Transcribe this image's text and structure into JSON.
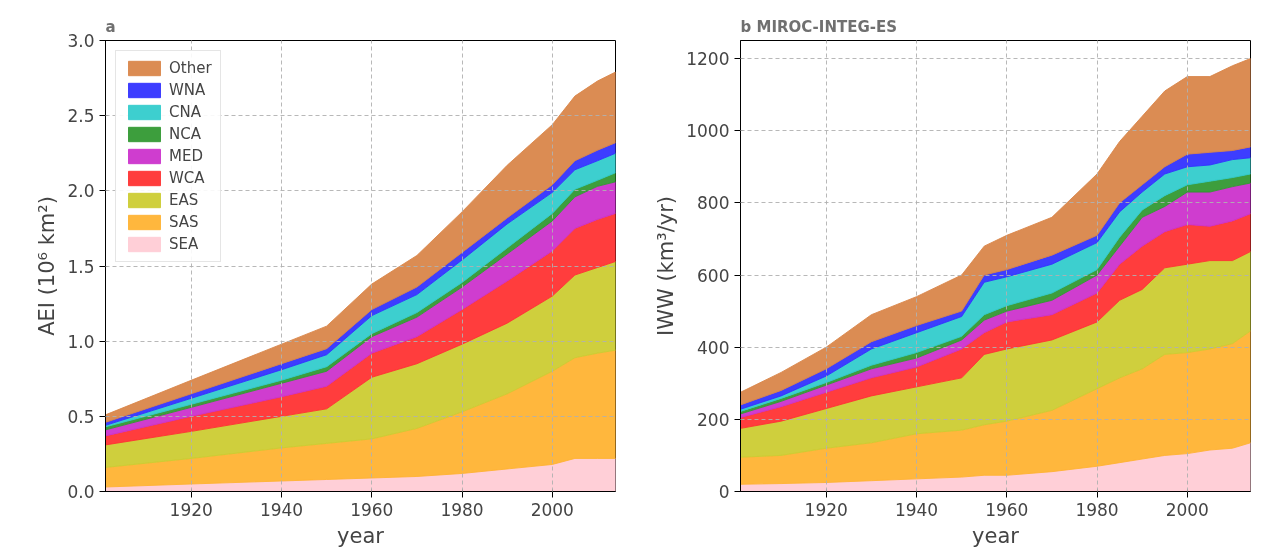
{
  "chart_data": [
    {
      "type": "area",
      "stacked": true,
      "title": "a",
      "xlabel": "year",
      "ylabel": "AEI (10⁶ km²)",
      "x": [
        1901,
        1920,
        1940,
        1950,
        1960,
        1970,
        1980,
        1990,
        2000,
        2005,
        2010,
        2014
      ],
      "xlim": [
        1901,
        2014
      ],
      "xticks": [
        1920,
        1940,
        1960,
        1980,
        2000
      ],
      "ylim": [
        0,
        3
      ],
      "yticks": [
        {
          "value": 0,
          "label": "0.0"
        },
        0.5,
        {
          "value": 1,
          "label": "1.0"
        },
        1.5,
        {
          "value": 2,
          "label": "2.0"
        },
        2.5,
        {
          "value": 3,
          "label": "3.0"
        }
      ],
      "grid": true,
      "legend": "top left",
      "series": [
        {
          "name": "SEA",
          "color": "#ffccd5",
          "values": [
            0.03,
            0.05,
            0.07,
            0.08,
            0.09,
            0.1,
            0.12,
            0.15,
            0.18,
            0.22,
            0.22,
            0.22
          ]
        },
        {
          "name": "SAS",
          "color": "#ffb333",
          "values": [
            0.13,
            0.17,
            0.22,
            0.24,
            0.26,
            0.32,
            0.41,
            0.5,
            0.62,
            0.67,
            0.7,
            0.72
          ]
        },
        {
          "name": "EAS",
          "color": "#cccc33",
          "values": [
            0.15,
            0.18,
            0.21,
            0.23,
            0.41,
            0.43,
            0.45,
            0.47,
            0.5,
            0.55,
            0.57,
            0.59
          ]
        },
        {
          "name": "WCA",
          "color": "#ff3333",
          "values": [
            0.06,
            0.1,
            0.13,
            0.15,
            0.16,
            0.18,
            0.23,
            0.28,
            0.3,
            0.31,
            0.32,
            0.32
          ]
        },
        {
          "name": "MED",
          "color": "#cc33cc",
          "values": [
            0.04,
            0.06,
            0.09,
            0.1,
            0.11,
            0.13,
            0.15,
            0.18,
            0.2,
            0.21,
            0.22,
            0.21
          ]
        },
        {
          "name": "NCA",
          "color": "#339933",
          "values": [
            0.02,
            0.02,
            0.02,
            0.03,
            0.02,
            0.03,
            0.03,
            0.04,
            0.05,
            0.05,
            0.04,
            0.06
          ]
        },
        {
          "name": "CNA",
          "color": "#33cccc",
          "values": [
            0.01,
            0.04,
            0.07,
            0.08,
            0.12,
            0.12,
            0.15,
            0.16,
            0.14,
            0.13,
            0.13,
            0.13
          ]
        },
        {
          "name": "WNA",
          "color": "#3333ff",
          "values": [
            0.02,
            0.03,
            0.04,
            0.04,
            0.04,
            0.05,
            0.05,
            0.04,
            0.05,
            0.06,
            0.07,
            0.07
          ]
        },
        {
          "name": "Other",
          "color": "#d9864a",
          "values": [
            0.05,
            0.09,
            0.13,
            0.15,
            0.17,
            0.21,
            0.27,
            0.35,
            0.4,
            0.43,
            0.46,
            0.47
          ]
        }
      ]
    },
    {
      "type": "area",
      "stacked": true,
      "title": "b MIROC-INTEG-ES",
      "xlabel": "year",
      "ylabel": "IWW (km³/yr)",
      "x": [
        1901,
        1910,
        1920,
        1930,
        1940,
        1950,
        1955,
        1960,
        1970,
        1980,
        1985,
        1990,
        1995,
        2000,
        2005,
        2010,
        2014
      ],
      "xlim": [
        1901,
        2014
      ],
      "xticks": [
        1920,
        1940,
        1960,
        1980,
        2000
      ],
      "ylim": [
        0,
        1250
      ],
      "yticks": [
        0,
        200,
        400,
        600,
        800,
        1000,
        1200
      ],
      "grid": true,
      "series": [
        {
          "color": "#ffccd5",
          "values": [
            20,
            22,
            25,
            30,
            35,
            40,
            45,
            45,
            55,
            70,
            80,
            90,
            100,
            105,
            115,
            120,
            135
          ]
        },
        {
          "color": "#ffb333",
          "values": [
            75,
            78,
            95,
            105,
            125,
            130,
            140,
            150,
            170,
            215,
            235,
            250,
            280,
            280,
            280,
            290,
            310
          ]
        },
        {
          "color": "#cccc33",
          "values": [
            80,
            95,
            110,
            130,
            130,
            145,
            195,
            200,
            195,
            185,
            215,
            220,
            240,
            245,
            245,
            230,
            220
          ]
        },
        {
          "color": "#ff3333",
          "values": [
            30,
            40,
            45,
            50,
            55,
            80,
            60,
            75,
            70,
            80,
            100,
            120,
            100,
            110,
            95,
            110,
            105
          ]
        },
        {
          "color": "#cc33cc",
          "values": [
            10,
            15,
            20,
            25,
            25,
            25,
            35,
            30,
            40,
            50,
            50,
            80,
            70,
            90,
            95,
            95,
            85
          ]
        },
        {
          "color": "#339933",
          "values": [
            7,
            8,
            7,
            10,
            15,
            10,
            15,
            15,
            20,
            15,
            25,
            20,
            30,
            20,
            30,
            25,
            25
          ]
        },
        {
          "color": "#33cccc",
          "values": [
            6,
            7,
            18,
            45,
            55,
            55,
            90,
            80,
            80,
            75,
            70,
            50,
            60,
            50,
            45,
            50,
            45
          ]
        },
        {
          "color": "#3333ff",
          "values": [
            12,
            15,
            20,
            20,
            20,
            15,
            20,
            20,
            25,
            20,
            25,
            20,
            20,
            35,
            35,
            25,
            30
          ]
        },
        {
          "color": "#d9864a",
          "values": [
            35,
            50,
            60,
            75,
            80,
            100,
            80,
            95,
            105,
            170,
            170,
            190,
            210,
            215,
            210,
            235,
            245
          ]
        }
      ]
    }
  ]
}
